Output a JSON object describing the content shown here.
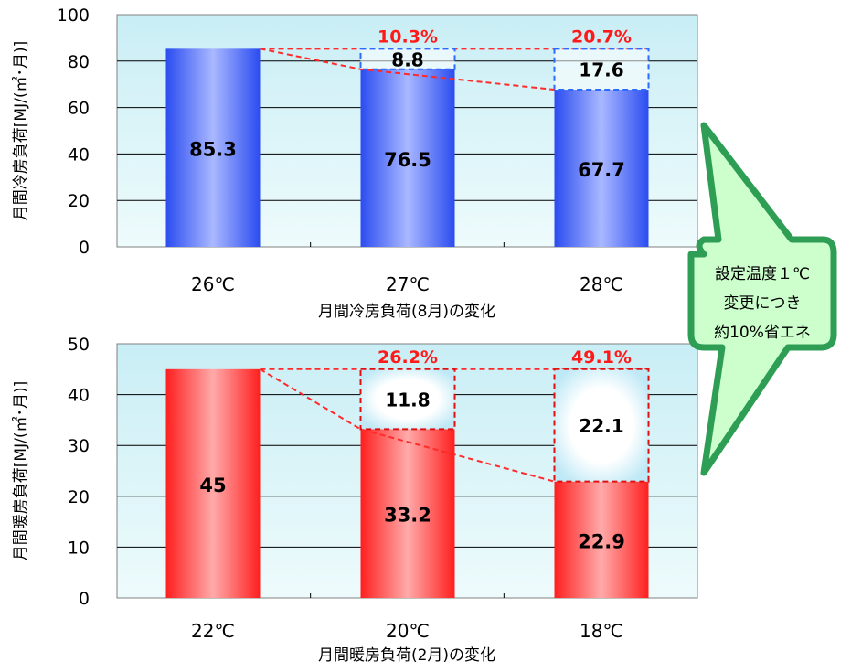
{
  "chart_data": [
    {
      "type": "bar",
      "title": "",
      "xlabel": "月間冷房負荷(8月)の変化",
      "ylabel": "月間冷房負荷[MJ/(㎡･月)]",
      "ylim": [
        0,
        100
      ],
      "yticks": [
        "0",
        "20",
        "40",
        "60",
        "80",
        "100"
      ],
      "categories": [
        "26℃",
        "27℃",
        "28℃"
      ],
      "values": [
        85.3,
        76.5,
        67.7
      ],
      "value_labels": [
        "85.3",
        "76.5",
        "67.7"
      ],
      "reduction": [
        null,
        8.8,
        17.6
      ],
      "reduction_labels": [
        "",
        "8.8",
        "17.6"
      ],
      "reduction_percent_labels": [
        "",
        "10.3%",
        "20.7%"
      ],
      "grid": true,
      "bar_colors": {
        "dark": "#2b4cf0",
        "light": "#a9b8ff"
      },
      "reduction_color": "#2b6bff",
      "percent_color": "#ff1a1a",
      "plot_background": "#d8f4f8"
    },
    {
      "type": "bar",
      "title": "",
      "xlabel": "月間暖房負荷(2月)の変化",
      "ylabel": "月間暖房負荷[MJ/(㎡･月)]",
      "ylim": [
        0,
        50
      ],
      "yticks": [
        "0",
        "10",
        "20",
        "30",
        "40",
        "50"
      ],
      "categories": [
        "22℃",
        "20℃",
        "18℃"
      ],
      "values": [
        45,
        33.2,
        22.9
      ],
      "value_labels": [
        "45",
        "33.2",
        "22.9"
      ],
      "reduction": [
        null,
        11.8,
        22.1
      ],
      "reduction_labels": [
        "",
        "11.8",
        "22.1"
      ],
      "reduction_percent_labels": [
        "",
        "26.2%",
        "49.1%"
      ],
      "grid": true,
      "bar_colors": {
        "dark": "#ff1f1f",
        "light": "#ffaaaa"
      },
      "reduction_color": "#e01010",
      "percent_color": "#ff1a1a",
      "plot_background": "#d8f4f8"
    }
  ],
  "callout": {
    "lines": [
      "設定温度１℃",
      "変更につき",
      "約10%省エネ"
    ],
    "fill": "#ccffcc",
    "border": "#2e9e55"
  }
}
